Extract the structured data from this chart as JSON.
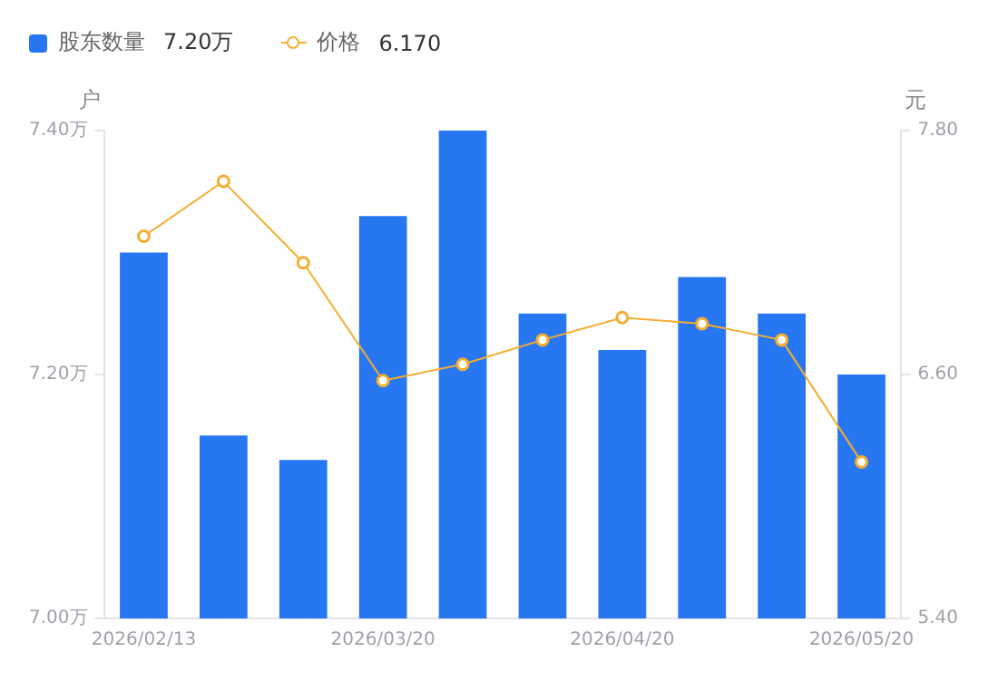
{
  "chart_data": {
    "type": "bar",
    "categories": [
      "2026/02/13",
      null,
      null,
      "2026/03/20",
      null,
      null,
      "2026/04/20",
      null,
      null,
      "2026/05/20"
    ],
    "ylabel": "户",
    "y2label": "元",
    "ylim": [
      7.0,
      7.4
    ],
    "yticks": [
      {
        "value": 7.0,
        "label": "7.00万"
      },
      {
        "value": 7.2,
        "label": "7.20万"
      },
      {
        "value": 7.4,
        "label": "7.40万"
      }
    ],
    "y2lim": [
      5.4,
      7.8
    ],
    "y2ticks": [
      {
        "value": 5.4,
        "label": "5.40"
      },
      {
        "value": 6.6,
        "label": "6.60"
      },
      {
        "value": 7.8,
        "label": "7.80"
      }
    ],
    "series": [
      {
        "name": "股东数量",
        "color": "#2776f2",
        "values": [
          7.3,
          7.15,
          7.13,
          7.33,
          7.4,
          7.25,
          7.22,
          7.28,
          7.25,
          7.2
        ]
      },
      {
        "name": "价格",
        "type": "line",
        "axis": "y2",
        "color": "#f5ad30",
        "marker": "circle",
        "values": [
          7.28,
          7.55,
          7.15,
          6.57,
          6.65,
          6.77,
          6.88,
          6.85,
          6.77,
          6.17
        ]
      }
    ],
    "annotations": [
      "7.20万",
      "6.170"
    ],
    "legend": "top left",
    "grid": false
  }
}
